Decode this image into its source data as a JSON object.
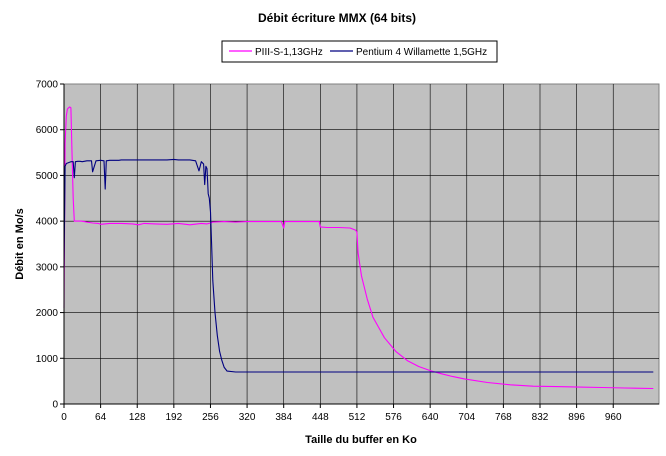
{
  "chart_data": {
    "type": "line",
    "title": "Débit écriture MMX (64 bits)",
    "xlabel": "Taille du buffer en Ko",
    "ylabel": "Débit en Mo/s",
    "xlim": [
      0,
      1040
    ],
    "ylim": [
      0,
      7000
    ],
    "x_ticks": [
      0,
      64,
      128,
      192,
      256,
      320,
      384,
      448,
      512,
      576,
      640,
      704,
      768,
      832,
      896,
      960
    ],
    "x_tick_labels": [
      "0",
      "64",
      "128",
      "192",
      "256",
      "320",
      "384",
      "448",
      "512",
      "576",
      "640",
      "704",
      "768",
      "832",
      "896",
      "960"
    ],
    "y_ticks": [
      0,
      1000,
      2000,
      3000,
      4000,
      5000,
      6000,
      7000
    ],
    "y_tick_labels": [
      "0",
      "1000",
      "2000",
      "3000",
      "4000",
      "5000",
      "6000",
      "7000"
    ],
    "grid": true,
    "plot_background": "#c0c0c0",
    "legend_position": "top-center",
    "series": [
      {
        "name": "PIII-S-1,13GHz",
        "color": "#ff00ff",
        "x": [
          0,
          2,
          4,
          6,
          8,
          10,
          12,
          14,
          16,
          18,
          20,
          22,
          30,
          40,
          50,
          60,
          64,
          80,
          100,
          120,
          130,
          140,
          160,
          180,
          200,
          220,
          240,
          250,
          256,
          260,
          280,
          300,
          320,
          340,
          360,
          380,
          384,
          386,
          400,
          420,
          440,
          446,
          448,
          450,
          460,
          480,
          500,
          510,
          512,
          514,
          520,
          530,
          540,
          560,
          580,
          600,
          620,
          640,
          660,
          680,
          700,
          740,
          780,
          820,
          860,
          900,
          940,
          980,
          1030
        ],
        "values": [
          2100,
          5700,
          6300,
          6450,
          6480,
          6500,
          6480,
          5500,
          4500,
          4000,
          4000,
          4000,
          4000,
          3980,
          3960,
          3950,
          3930,
          3950,
          3950,
          3940,
          3920,
          3950,
          3940,
          3930,
          3950,
          3920,
          3950,
          3940,
          3960,
          3980,
          3990,
          3980,
          3990,
          3990,
          3990,
          3990,
          3850,
          3990,
          3990,
          3990,
          3990,
          3990,
          3870,
          3870,
          3860,
          3860,
          3850,
          3800,
          3760,
          3300,
          2800,
          2300,
          1900,
          1450,
          1150,
          950,
          820,
          730,
          660,
          600,
          550,
          470,
          420,
          390,
          380,
          370,
          360,
          350,
          340
        ]
      },
      {
        "name": "Pentium 4 Willamette 1,5GHz",
        "color": "#000080",
        "x": [
          0,
          2,
          4,
          8,
          12,
          16,
          18,
          20,
          24,
          28,
          32,
          40,
          48,
          50,
          56,
          64,
          70,
          72,
          74,
          80,
          96,
          100,
          120,
          140,
          160,
          180,
          192,
          200,
          220,
          230,
          236,
          240,
          244,
          246,
          248,
          250,
          252,
          254,
          256,
          258,
          260,
          264,
          268,
          272,
          276,
          280,
          285,
          300,
          340,
          380,
          420,
          460,
          500,
          540,
          580,
          620,
          660,
          700,
          740,
          780,
          820,
          840,
          860,
          900,
          940,
          980,
          1030
        ],
        "values": [
          3000,
          5200,
          5260,
          5280,
          5300,
          5300,
          4950,
          5300,
          5310,
          5310,
          5300,
          5320,
          5320,
          5080,
          5320,
          5330,
          5320,
          4700,
          5320,
          5330,
          5330,
          5340,
          5340,
          5340,
          5340,
          5340,
          5350,
          5340,
          5340,
          5320,
          5100,
          5300,
          5250,
          4800,
          5200,
          5150,
          4600,
          4500,
          4200,
          3500,
          2700,
          2000,
          1500,
          1150,
          950,
          800,
          720,
          700,
          700,
          700,
          700,
          700,
          700,
          700,
          700,
          700,
          700,
          700,
          700,
          700,
          700,
          700,
          700,
          700,
          700,
          700,
          700
        ]
      }
    ]
  }
}
